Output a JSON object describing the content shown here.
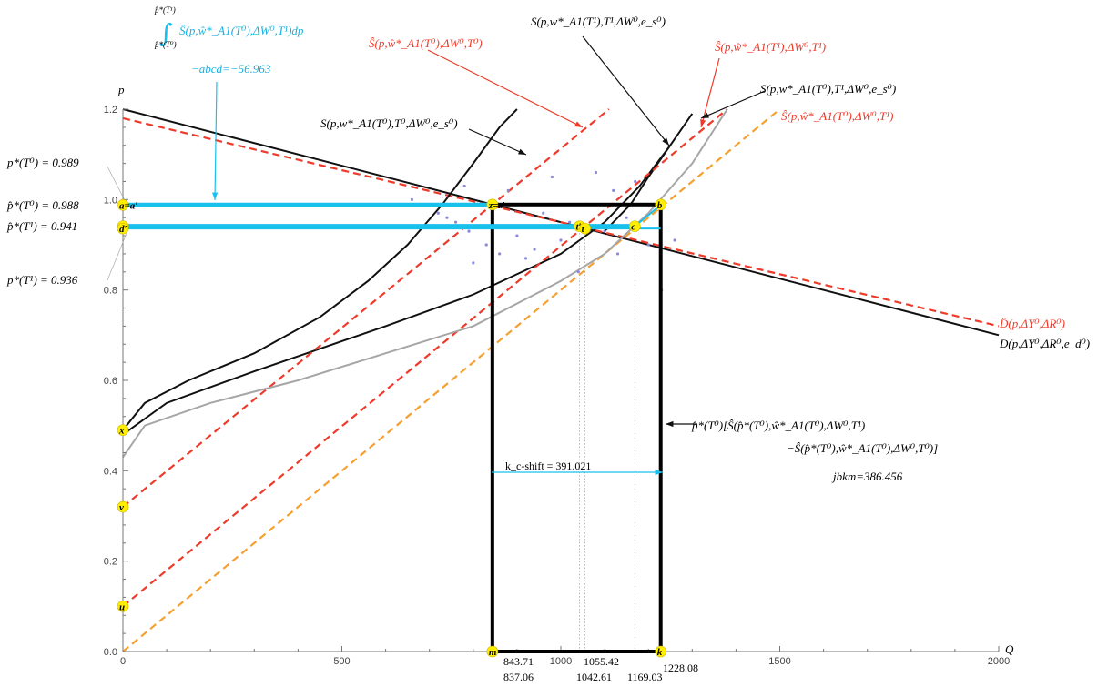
{
  "chart_data": {
    "type": "line",
    "title": "",
    "xlabel": "Q",
    "ylabel": "p",
    "xlim": [
      0,
      2000
    ],
    "ylim": [
      0,
      1.2
    ],
    "x_ticks": [
      0,
      500,
      1000,
      1500,
      2000
    ],
    "y_ticks": [
      0.0,
      0.2,
      0.4,
      0.6,
      0.8,
      1.0,
      1.2
    ],
    "grid": false,
    "colors": {
      "black": "#111111",
      "red": "#ee3a2a",
      "orange": "#f5a030",
      "gray": "#a6a6a6",
      "cyan": "#19c0ec",
      "yellow": "#ffee00",
      "scatter": "#8a8ad8"
    },
    "series": [
      {
        "name": "D(p,ΔY⁰,ΔR⁰,e_d⁰)",
        "style": "solid",
        "color": "black",
        "x": [
          0,
          2000
        ],
        "y": [
          1.2,
          0.7
        ]
      },
      {
        "name": "D̂(p,ΔY⁰,ΔR⁰)",
        "style": "dashed",
        "color": "red",
        "x": [
          0,
          2000
        ],
        "y": [
          1.18,
          0.72
        ]
      },
      {
        "name": "S(p,w*_A1(T⁰),T⁰,ΔW⁰,e_s⁰)",
        "style": "solid",
        "color": "black",
        "x": [
          0,
          50,
          150,
          300,
          450,
          560,
          650,
          730,
          800,
          860,
          900
        ],
        "y": [
          0.49,
          0.55,
          0.6,
          0.66,
          0.74,
          0.82,
          0.9,
          0.99,
          1.08,
          1.16,
          1.2
        ]
      },
      {
        "name": "S(p,w*_A1(T⁰),T¹,ΔW⁰,e_s⁰)",
        "style": "solid",
        "color": "black",
        "x": [
          0,
          100,
          300,
          600,
          800,
          1000,
          1100,
          1180,
          1250
        ],
        "y": [
          0.48,
          0.55,
          0.62,
          0.72,
          0.79,
          0.88,
          0.95,
          1.03,
          1.12
        ]
      },
      {
        "name": "S(p,w*_A1(T¹),T¹,ΔW⁰,e_s⁰)",
        "style": "solid",
        "color": "black",
        "x": [
          1100,
          1160,
          1200,
          1250,
          1300
        ],
        "y": [
          0.93,
          0.99,
          1.05,
          1.12,
          1.19
        ]
      },
      {
        "name": "Ŝ(p,ŵ*_A1(T⁰),ΔW⁰,T⁰)",
        "style": "dashed",
        "color": "red",
        "x": [
          0,
          1110
        ],
        "y": [
          0.32,
          1.2
        ]
      },
      {
        "name": "Ŝ(p,ŵ*_A1(T¹),ΔW⁰,T¹)",
        "style": "dashed",
        "color": "red",
        "x": [
          0,
          1380
        ],
        "y": [
          0.1,
          1.2
        ]
      },
      {
        "name": "Ŝ(p,ŵ*_A1(T⁰),ΔW⁰,T¹)",
        "style": "dashed",
        "color": "orange",
        "x": [
          0,
          1500
        ],
        "y": [
          0.0,
          1.2
        ]
      },
      {
        "name": "",
        "style": "solid",
        "color": "gray",
        "x": [
          0,
          50,
          200,
          400,
          600,
          800,
          1000,
          1100,
          1200,
          1300,
          1380
        ],
        "y": [
          0.43,
          0.5,
          0.55,
          0.6,
          0.66,
          0.72,
          0.82,
          0.88,
          0.97,
          1.08,
          1.2
        ]
      }
    ],
    "scatter": {
      "x": [
        660,
        720,
        740,
        760,
        780,
        790,
        800,
        810,
        830,
        840,
        860,
        880,
        900,
        920,
        940,
        960,
        980,
        1000,
        1020,
        1040,
        1060,
        1080,
        1100,
        1120,
        1130,
        1150,
        1170,
        1200,
        1230,
        1260
      ],
      "y": [
        1.0,
        0.97,
        0.96,
        0.95,
        1.03,
        0.93,
        0.86,
        0.99,
        0.9,
        0.94,
        0.88,
        1.02,
        0.92,
        0.87,
        0.89,
        0.97,
        1.05,
        0.91,
        0.95,
        0.84,
        0.99,
        1.06,
        0.93,
        1.02,
        0.88,
        0.96,
        1.04,
        0.9,
        0.8,
        0.91
      ]
    },
    "rectangle": {
      "x": [
        843.71,
        1228.08
      ],
      "y": [
        0.0,
        0.989
      ]
    },
    "cyan_lines": [
      {
        "x": [
          0,
          843.71
        ],
        "y": [
          0.988,
          0.988
        ]
      },
      {
        "x": [
          0,
          1169.03
        ],
        "y": [
          0.941,
          0.941
        ]
      },
      {
        "x": [
          0,
          1228.08
        ],
        "y": [
          0.936,
          0.936
        ]
      },
      {
        "x": [
          1169.03,
          1228.08
        ],
        "y": [
          0.941,
          0.988
        ]
      }
    ],
    "dotted_verticals": [
      1042.61,
      1055.42,
      1169.03
    ],
    "points": [
      {
        "label": "z=z′",
        "x": 843.71,
        "y": 0.989
      },
      {
        "label": "a=a′",
        "x": 0,
        "y": 0.988
      },
      {
        "label": "b",
        "x": 1228.08,
        "y": 0.989
      },
      {
        "label": "c",
        "x": 1169.03,
        "y": 0.941
      },
      {
        "label": "d",
        "x": 0,
        "y": 0.941
      },
      {
        "label": "d′",
        "x": 0,
        "y": 0.936
      },
      {
        "label": "t′",
        "x": 1042.61,
        "y": 0.941
      },
      {
        "label": "t",
        "x": 1055.42,
        "y": 0.936
      },
      {
        "label": "m",
        "x": 843.71,
        "y": 0.0
      },
      {
        "label": "k",
        "x": 1228.08,
        "y": 0.0
      },
      {
        "label": "x",
        "x": 0,
        "y": 0.49
      },
      {
        "label": "v",
        "x": 0,
        "y": 0.32
      },
      {
        "label": "u",
        "x": 0,
        "y": 0.1
      }
    ],
    "value_labels": [
      "843.71",
      "837.06",
      "1055.42",
      "1042.61",
      "1169.03",
      "1228.08"
    ],
    "annotations": {
      "p_star_T0": "p*(T⁰) = 0.989",
      "p_hat_T0": "p̂*(T⁰) = 0.988",
      "p_hat_T1": "p̂*(T¹) = 0.941",
      "p_star_T1": "p*(T¹) = 0.936",
      "integral_top": "p̂*(T¹)",
      "integral_bottom": "p̂*(T⁰)",
      "integral_body": "Ŝ(p,ŵ*_A1(T⁰),ΔW⁰,T¹)dp",
      "abcd": "−abcd=−56.963",
      "lbl_S_hat_T0_T0": "Ŝ(p,ŵ*_A1(T⁰),ΔW⁰,T⁰)",
      "lbl_S_T1_T1": "S(p,w*_A1(T¹),T¹,ΔW⁰,e_s⁰)",
      "lbl_S_hat_T1_T1": "Ŝ(p,ŵ*_A1(T¹),ΔW⁰,T¹)",
      "lbl_S_T0_T1": "S(p,w*_A1(T⁰),T¹,ΔW⁰,e_s⁰)",
      "lbl_S_hat_T0_T1": "Ŝ(p,ŵ*_A1(T⁰),ΔW⁰,T¹)",
      "lbl_S_T0_T0": "S(p,w*_A1(T⁰),T⁰,ΔW⁰,e_s⁰)",
      "lbl_D_hat": "D̂(p,ΔY⁰,ΔR⁰)",
      "lbl_D": "D(p,ΔY⁰,ΔR⁰,e_d⁰)",
      "jbkm_line1": "p̂*(T⁰)[Ŝ(p̂*(T⁰),ŵ*_A1(T⁰),ΔW⁰,T¹)",
      "jbkm_line2": "−Ŝ(p̂*(T⁰),ŵ*_A1(T⁰),ΔW⁰,T⁰)]",
      "jbkm": "jbkm=386.456",
      "kc_shift": "k_c-shift = 391.021"
    }
  }
}
